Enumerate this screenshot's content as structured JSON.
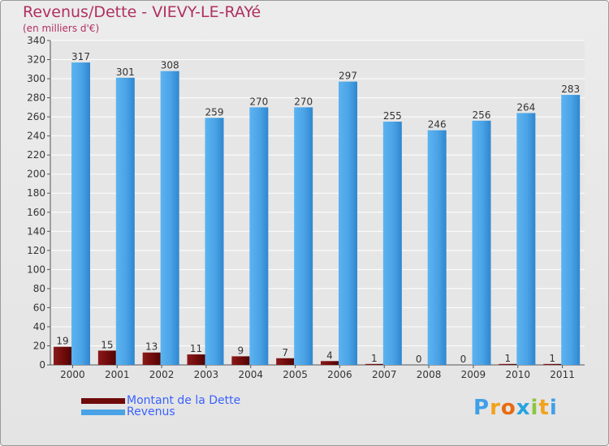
{
  "title": "Revenus/Dette - VIEVY-LE-RAYé",
  "subtitle": "(en milliers d'€)",
  "chart_data": {
    "type": "bar",
    "title": "Revenus/Dette - VIEVY-LE-RAYé",
    "ylabel": "(en milliers d'€)",
    "xlabel": "",
    "ylim": [
      0,
      340
    ],
    "ytick_step": 20,
    "grid": true,
    "categories": [
      "2000",
      "2001",
      "2002",
      "2003",
      "2004",
      "2005",
      "2006",
      "2007",
      "2008",
      "2009",
      "2010",
      "2011"
    ],
    "series": [
      {
        "name": "Montant de la Dette",
        "color": "#7a0f0f",
        "values": [
          19,
          15,
          13,
          11,
          9,
          7,
          4,
          1,
          0,
          0,
          1,
          1
        ]
      },
      {
        "name": "Revenus",
        "color": "#4aa3e6",
        "values": [
          317,
          301,
          308,
          259,
          270,
          270,
          297,
          255,
          246,
          256,
          264,
          283
        ]
      }
    ],
    "legend": "bottom-left"
  },
  "legend": {
    "items": [
      {
        "label": "Montant de la Dette",
        "color": "#6e0a0a"
      },
      {
        "label": "Revenus",
        "color": "#4aa3e6"
      }
    ]
  },
  "logo": {
    "letters": [
      "P",
      "r",
      "o",
      "x",
      "i",
      "t",
      "i"
    ],
    "colors": [
      "#3fa0e8",
      "#f2a21b",
      "#e86a10",
      "#27a4e0",
      "#8cc63f",
      "#f2a21b",
      "#3fa0e8"
    ]
  }
}
